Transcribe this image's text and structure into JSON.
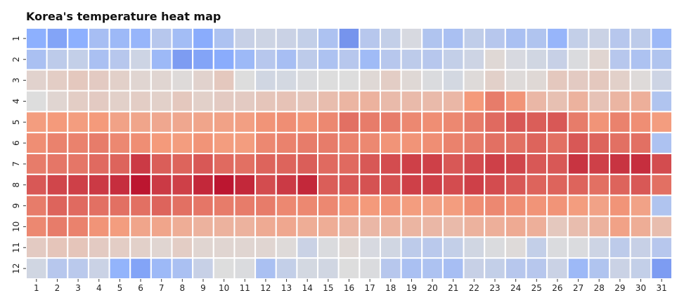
{
  "chart_data": {
    "type": "heatmap",
    "title": "Korea's temperature heat map",
    "xlabel": "",
    "ylabel": "",
    "x_categories": [
      "1",
      "2",
      "3",
      "4",
      "5",
      "6",
      "7",
      "8",
      "9",
      "10",
      "11",
      "12",
      "13",
      "14",
      "15",
      "16",
      "17",
      "18",
      "19",
      "20",
      "21",
      "22",
      "23",
      "24",
      "25",
      "26",
      "27",
      "28",
      "29",
      "30",
      "31"
    ],
    "y_categories": [
      "1",
      "2",
      "3",
      "4",
      "5",
      "6",
      "7",
      "8",
      "9",
      "10",
      "11",
      "12"
    ],
    "colormap": "coolwarm",
    "vmin": 0,
    "vmax": 1,
    "legend": "none",
    "values": [
      [
        0.25,
        0.22,
        0.25,
        0.33,
        0.3,
        0.28,
        0.38,
        0.32,
        0.24,
        0.35,
        0.43,
        0.45,
        0.44,
        0.42,
        0.35,
        0.18,
        0.38,
        0.42,
        0.48,
        0.36,
        0.34,
        0.41,
        0.38,
        0.34,
        0.36,
        0.28,
        0.42,
        0.44,
        0.38,
        0.4,
        0.3
      ],
      [
        0.34,
        0.4,
        0.42,
        0.34,
        0.38,
        0.45,
        0.3,
        0.2,
        0.22,
        0.24,
        0.3,
        0.38,
        0.33,
        0.4,
        0.35,
        0.38,
        0.31,
        0.38,
        0.4,
        0.38,
        0.42,
        0.45,
        0.52,
        0.48,
        0.46,
        0.43,
        0.49,
        0.53,
        0.38,
        0.35,
        0.36
      ],
      [
        0.54,
        0.56,
        0.58,
        0.57,
        0.55,
        0.53,
        0.53,
        0.51,
        0.54,
        0.58,
        0.5,
        0.46,
        0.47,
        0.49,
        0.5,
        0.5,
        0.52,
        0.56,
        0.52,
        0.49,
        0.47,
        0.51,
        0.55,
        0.51,
        0.52,
        0.58,
        0.57,
        0.58,
        0.55,
        0.51,
        0.45
      ],
      [
        0.5,
        0.53,
        0.56,
        0.57,
        0.55,
        0.56,
        0.55,
        0.58,
        0.55,
        0.57,
        0.57,
        0.59,
        0.6,
        0.59,
        0.62,
        0.65,
        0.66,
        0.63,
        0.63,
        0.63,
        0.64,
        0.75,
        0.8,
        0.76,
        0.64,
        0.61,
        0.66,
        0.6,
        0.65,
        0.67,
        0.36
      ],
      [
        0.74,
        0.75,
        0.74,
        0.75,
        0.72,
        0.71,
        0.7,
        0.7,
        0.71,
        0.72,
        0.73,
        0.76,
        0.77,
        0.76,
        0.78,
        0.82,
        0.8,
        0.8,
        0.78,
        0.77,
        0.78,
        0.8,
        0.83,
        0.86,
        0.85,
        0.86,
        0.8,
        0.76,
        0.79,
        0.77,
        0.74
      ],
      [
        0.77,
        0.79,
        0.79,
        0.8,
        0.78,
        0.77,
        0.75,
        0.74,
        0.76,
        0.74,
        0.74,
        0.78,
        0.79,
        0.8,
        0.8,
        0.79,
        0.78,
        0.76,
        0.76,
        0.77,
        0.79,
        0.8,
        0.82,
        0.82,
        0.84,
        0.82,
        0.86,
        0.84,
        0.82,
        0.82,
        0.35
      ],
      [
        0.8,
        0.81,
        0.81,
        0.83,
        0.84,
        0.91,
        0.85,
        0.84,
        0.86,
        0.83,
        0.82,
        0.84,
        0.84,
        0.85,
        0.83,
        0.83,
        0.86,
        0.88,
        0.9,
        0.9,
        0.86,
        0.88,
        0.9,
        0.89,
        0.86,
        0.86,
        0.92,
        0.9,
        0.92,
        0.93,
        0.88
      ],
      [
        0.86,
        0.89,
        0.9,
        0.91,
        0.93,
        0.97,
        0.91,
        0.9,
        0.94,
        0.97,
        0.94,
        0.88,
        0.91,
        0.94,
        0.85,
        0.86,
        0.87,
        0.87,
        0.9,
        0.9,
        0.88,
        0.9,
        0.88,
        0.86,
        0.84,
        0.84,
        0.84,
        0.82,
        0.84,
        0.86,
        0.82
      ],
      [
        0.8,
        0.84,
        0.83,
        0.82,
        0.82,
        0.82,
        0.84,
        0.82,
        0.81,
        0.8,
        0.8,
        0.8,
        0.78,
        0.78,
        0.78,
        0.76,
        0.75,
        0.76,
        0.74,
        0.73,
        0.74,
        0.77,
        0.78,
        0.77,
        0.76,
        0.76,
        0.74,
        0.72,
        0.76,
        0.72,
        0.36
      ],
      [
        0.78,
        0.8,
        0.79,
        0.76,
        0.74,
        0.71,
        0.71,
        0.68,
        0.66,
        0.66,
        0.66,
        0.69,
        0.7,
        0.68,
        0.68,
        0.66,
        0.64,
        0.66,
        0.65,
        0.64,
        0.63,
        0.66,
        0.67,
        0.69,
        0.67,
        0.58,
        0.62,
        0.66,
        0.72,
        0.68,
        0.62
      ],
      [
        0.57,
        0.59,
        0.59,
        0.57,
        0.56,
        0.55,
        0.53,
        0.56,
        0.53,
        0.53,
        0.53,
        0.53,
        0.51,
        0.44,
        0.49,
        0.52,
        0.48,
        0.46,
        0.4,
        0.39,
        0.42,
        0.46,
        0.49,
        0.51,
        0.42,
        0.49,
        0.49,
        0.45,
        0.4,
        0.43,
        0.38
      ],
      [
        0.46,
        0.38,
        0.39,
        0.44,
        0.27,
        0.22,
        0.3,
        0.34,
        0.43,
        0.5,
        0.49,
        0.34,
        0.42,
        0.47,
        0.46,
        0.5,
        0.49,
        0.38,
        0.34,
        0.35,
        0.33,
        0.43,
        0.42,
        0.38,
        0.38,
        0.44,
        0.3,
        0.36,
        0.44,
        0.42,
        0.2
      ]
    ]
  }
}
